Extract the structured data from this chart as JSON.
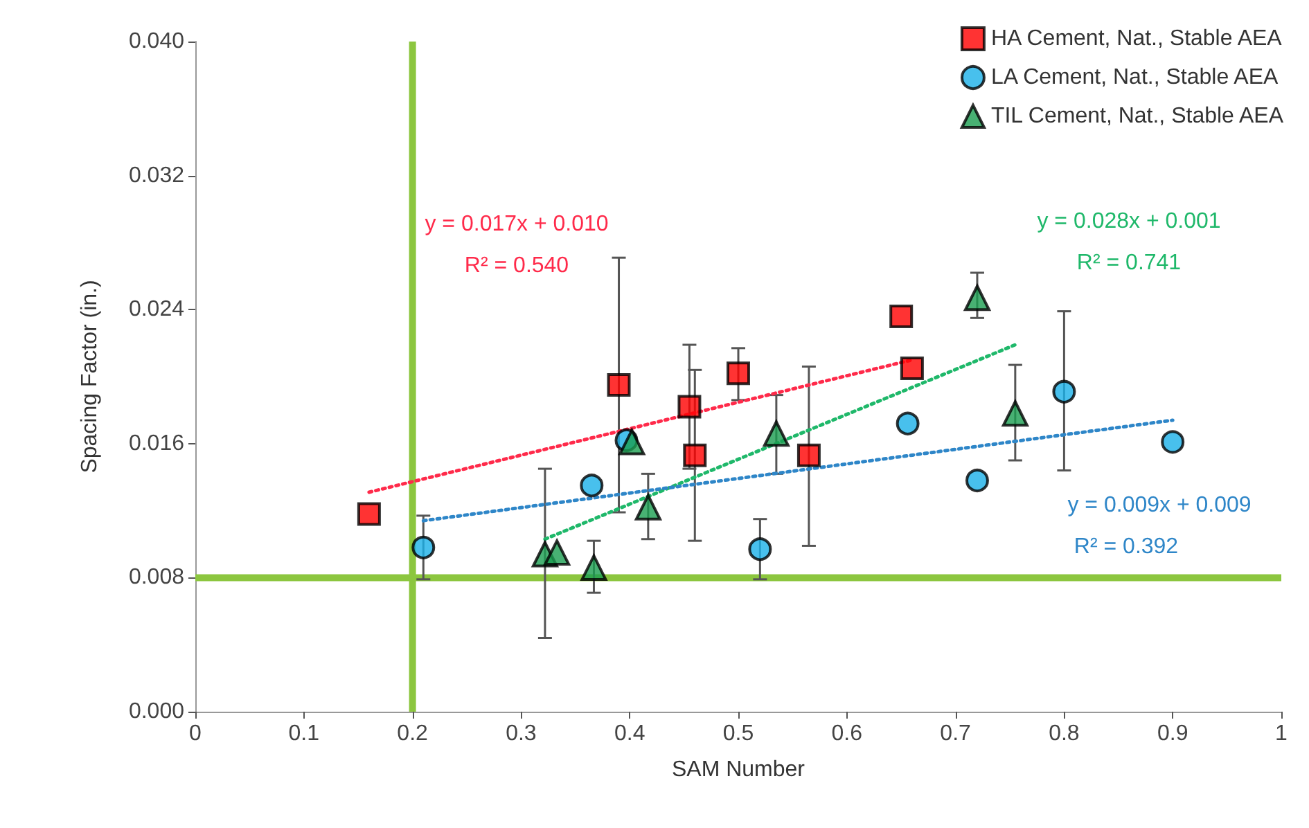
{
  "chart_data": {
    "type": "scatter",
    "xlabel": "SAM Number",
    "ylabel": "Spacing Factor (in.)",
    "xlim": [
      0,
      1
    ],
    "xticks": [
      0,
      0.1,
      0.2,
      0.3,
      0.4,
      0.5,
      0.6,
      0.7,
      0.8,
      0.9,
      1
    ],
    "ylim": [
      0,
      0.04
    ],
    "yticks": [
      {
        "value": 0,
        "label": "0.000"
      },
      0.008,
      0.016,
      0.024,
      0.032,
      {
        "value": 0.04,
        "label": "0.040"
      }
    ],
    "grid": false,
    "legend": "top right",
    "series": [
      {
        "name": "HA Cement, Nat., Stable AEA",
        "color": "#ff0000",
        "marker": "square",
        "x": [
          0.16,
          0.39,
          0.455,
          0.46,
          0.5,
          0.565,
          0.65,
          0.66
        ],
        "values": [
          0.0118,
          0.0195,
          0.0182,
          0.0153,
          0.0202,
          0.0153,
          0.0236,
          0.0205
        ],
        "errors": [
          null,
          [
            0.0119,
            0.0271
          ],
          [
            0.0145,
            0.0219
          ],
          [
            0.0102,
            0.0204
          ],
          [
            0.0186,
            0.0217
          ],
          [
            0.0099,
            0.0206
          ],
          null,
          null
        ]
      },
      {
        "name": "LA Cement, Nat., Stable AEA",
        "color": "#1ab0e8",
        "marker": "circle",
        "x": [
          0.21,
          0.365,
          0.397,
          0.52,
          0.656,
          0.72,
          0.8,
          0.9
        ],
        "values": [
          0.0098,
          0.0135,
          0.0162,
          0.0097,
          0.0172,
          0.0138,
          0.0191,
          0.0161
        ],
        "errors": [
          0.0019,
          null,
          null,
          0.0018,
          null,
          null,
          [
            0.0144,
            0.0239
          ],
          null
        ]
      },
      {
        "name": "TIL Cement, Nat., Stable AEA",
        "color": "#1a9e50",
        "marker": "triangle",
        "x": [
          0.322,
          0.333,
          0.367,
          0.402,
          0.417,
          0.535,
          0.72,
          0.755
        ],
        "values": [
          0.0094,
          0.0095,
          0.0086,
          0.0161,
          0.0122,
          0.0166,
          0.0247,
          0.0178
        ],
        "errors": [
          [
            0.0044,
            0.0145
          ],
          null,
          [
            0.0071,
            0.0102
          ],
          null,
          [
            0.0103,
            0.0142
          ],
          [
            0.0142,
            0.0189
          ],
          [
            0.0235,
            0.0262
          ],
          [
            0.015,
            0.0207
          ]
        ]
      },
      {
        "type": "line",
        "color": "#ff2a4a",
        "line_style": "dotted",
        "marker": "none",
        "x": [
          0.16,
          0.66
        ],
        "values": [
          0.0131,
          0.021
        ]
      },
      {
        "type": "line",
        "color": "#1fb86a",
        "line_style": "dotted",
        "marker": "none",
        "x": [
          0.322,
          0.755
        ],
        "values": [
          0.0103,
          0.0219
        ]
      },
      {
        "type": "line",
        "color": "#2e86c8",
        "line_style": "dotted",
        "marker": "none",
        "x": [
          0.21,
          0.9
        ],
        "values": [
          0.0114,
          0.0174
        ]
      }
    ],
    "ref_lines": [
      {
        "axis": "x",
        "value": 0.2,
        "color": "#8cc63f"
      },
      {
        "axis": "y",
        "value": 0.008,
        "color": "#8cc63f"
      }
    ],
    "annotations": [
      "y = 0.017x + 0.010",
      "R² = 0.540",
      "y = 0.028x + 0.001",
      "R² = 0.741",
      "y = 0.009x + 0.009",
      "R² = 0.392"
    ]
  }
}
